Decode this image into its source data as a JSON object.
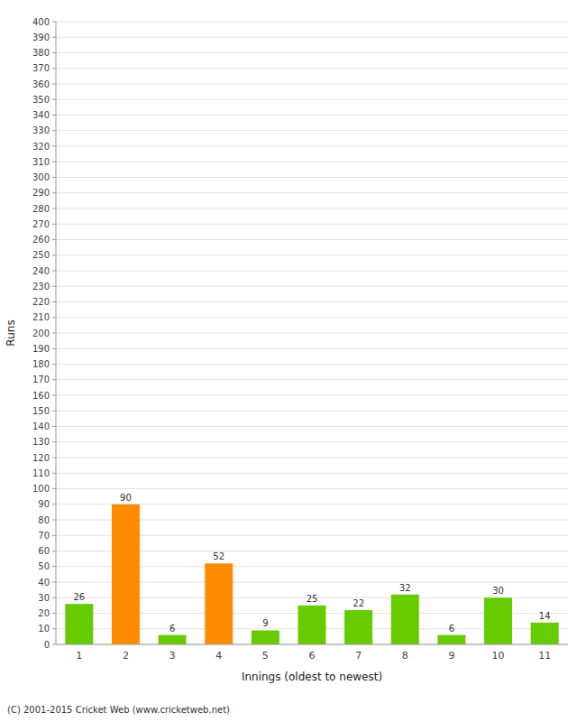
{
  "chart_data": {
    "type": "bar",
    "xlabel": "Innings (oldest to newest)",
    "ylabel": "Runs",
    "categories": [
      "1",
      "2",
      "3",
      "4",
      "5",
      "6",
      "7",
      "8",
      "9",
      "10",
      "11"
    ],
    "values": [
      26,
      90,
      6,
      52,
      9,
      25,
      22,
      32,
      6,
      30,
      14
    ],
    "colors": [
      "#66cc00",
      "#ff8c00",
      "#66cc00",
      "#ff8c00",
      "#66cc00",
      "#66cc00",
      "#66cc00",
      "#66cc00",
      "#66cc00",
      "#66cc00",
      "#66cc00"
    ],
    "ylim": [
      0,
      400
    ],
    "yticks": [
      0,
      10,
      20,
      30,
      40,
      50,
      60,
      70,
      80,
      90,
      100,
      110,
      120,
      130,
      140,
      150,
      160,
      170,
      180,
      190,
      200,
      210,
      220,
      230,
      240,
      250,
      260,
      270,
      280,
      290,
      300,
      310,
      320,
      330,
      340,
      350,
      360,
      370,
      380,
      390,
      400
    ],
    "grid": true,
    "data_labels": true,
    "annotations": [
      "(C) 2001-2015 Cricket Web (www.cricketweb.net)"
    ]
  }
}
